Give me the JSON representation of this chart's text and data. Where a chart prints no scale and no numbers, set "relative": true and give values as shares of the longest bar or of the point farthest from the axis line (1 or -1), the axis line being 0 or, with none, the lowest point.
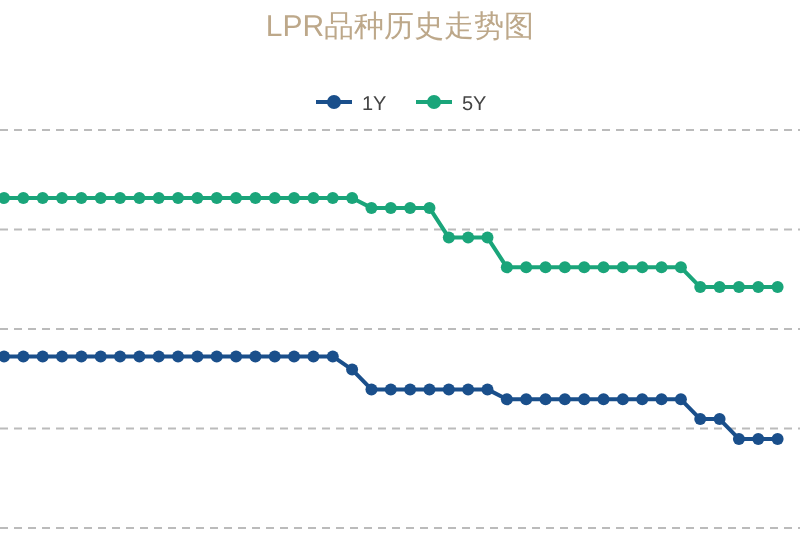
{
  "chart_data": {
    "type": "line",
    "title": "LPR品种历史走势图",
    "relative": true,
    "grid": "y",
    "legend": "top",
    "marker": "circle",
    "line_style": "solid",
    "categories": [
      null,
      null,
      null,
      null,
      null,
      null,
      null,
      null,
      null,
      null,
      null,
      null,
      null,
      null,
      null,
      null,
      null,
      null,
      null,
      null,
      null,
      null,
      null,
      null,
      null,
      null,
      null,
      null,
      null,
      null,
      null,
      null,
      null,
      null,
      null,
      null,
      null,
      null,
      null,
      null,
      null
    ],
    "series": [
      {
        "name": "1Y",
        "color": "#1a4f8b",
        "values": [
          0.52,
          0.52,
          0.52,
          0.52,
          0.52,
          0.52,
          0.52,
          0.52,
          0.52,
          0.52,
          0.52,
          0.52,
          0.52,
          0.52,
          0.52,
          0.52,
          0.52,
          0.52,
          0.48,
          0.42,
          0.42,
          0.42,
          0.42,
          0.42,
          0.42,
          0.42,
          0.39,
          0.39,
          0.39,
          0.39,
          0.39,
          0.39,
          0.39,
          0.39,
          0.39,
          0.39,
          0.33,
          0.33,
          0.27,
          0.27,
          0.27
        ]
      },
      {
        "name": "5Y",
        "color": "#1aa57a",
        "values": [
          1,
          1,
          1,
          1,
          1,
          1,
          1,
          1,
          1,
          1,
          1,
          1,
          1,
          1,
          1,
          1,
          1,
          1,
          1,
          0.97,
          0.97,
          0.97,
          0.97,
          0.88,
          0.88,
          0.88,
          0.79,
          0.79,
          0.79,
          0.79,
          0.79,
          0.79,
          0.79,
          0.79,
          0.79,
          0.79,
          0.73,
          0.73,
          0.73,
          0.73,
          0.73
        ]
      }
    ]
  }
}
